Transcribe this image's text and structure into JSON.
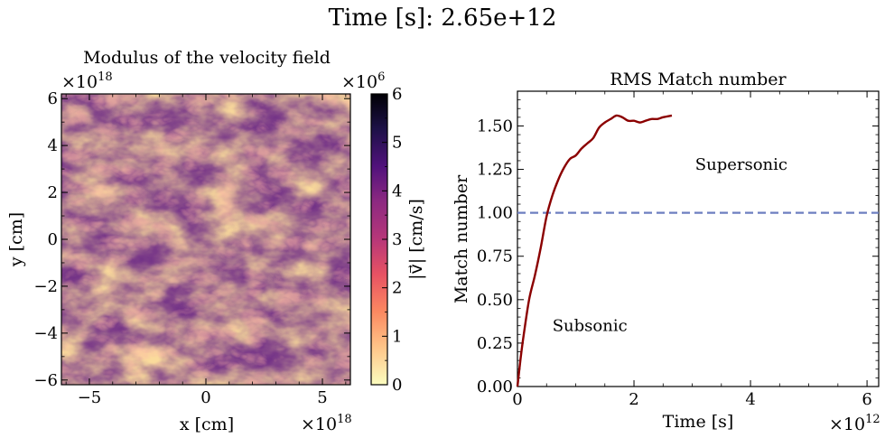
{
  "suptitle": "Time [s]: 2.65e+12",
  "colors": {
    "mach_line": "#8b0000",
    "threshold_line": "#6d7fc0"
  },
  "chart_data": [
    {
      "type": "heatmap",
      "title": "Modulus of the velocity field",
      "xlabel": "x [cm]",
      "ylabel": "y [cm]",
      "x_offset_label": "×10^18",
      "y_offset_label": "×10^18",
      "xlim": [
        -6.2,
        6.2
      ],
      "ylim": [
        -6.2,
        6.2
      ],
      "xticks": [
        -5,
        0,
        5
      ],
      "xtick_labels": [
        "−5",
        "0",
        "5"
      ],
      "yticks": [
        -6,
        -4,
        -2,
        0,
        2,
        4,
        6
      ],
      "ytick_labels": [
        "−6",
        "−4",
        "−2",
        "0",
        "2",
        "4",
        "6"
      ],
      "colormap": "magma_r",
      "colorbar": {
        "label": "|v⃗| [cm/s]",
        "offset_label": "×10^6",
        "range": [
          0,
          6
        ],
        "ticks": [
          0,
          1,
          2,
          3,
          4,
          5,
          6
        ],
        "tick_labels": [
          "0",
          "1",
          "2",
          "3",
          "4",
          "5",
          "6"
        ]
      }
    },
    {
      "type": "line",
      "title": "RMS Match number",
      "xlabel": "Time [s]",
      "ylabel": "Match number",
      "x_offset_label": "×10^12",
      "xlim": [
        0,
        6.2
      ],
      "ylim": [
        0,
        1.7
      ],
      "xticks": [
        0,
        2,
        4,
        6
      ],
      "xtick_labels": [
        "0",
        "2",
        "4",
        "6"
      ],
      "yticks": [
        0,
        0.25,
        0.5,
        0.75,
        1.0,
        1.25,
        1.5
      ],
      "ytick_labels": [
        "0.00",
        "0.25",
        "0.50",
        "0.75",
        "1.00",
        "1.25",
        "1.50"
      ],
      "series": [
        {
          "x": [
            0.0,
            0.05,
            0.1,
            0.2,
            0.3,
            0.4,
            0.5,
            0.6,
            0.7,
            0.8,
            0.9,
            1.0,
            1.1,
            1.2,
            1.3,
            1.4,
            1.5,
            1.6,
            1.7,
            1.8,
            1.9,
            2.0,
            2.1,
            2.2,
            2.3,
            2.4,
            2.5,
            2.65
          ],
          "y": [
            0.0,
            0.15,
            0.28,
            0.5,
            0.64,
            0.8,
            0.98,
            1.1,
            1.19,
            1.26,
            1.31,
            1.33,
            1.37,
            1.4,
            1.43,
            1.49,
            1.52,
            1.54,
            1.56,
            1.55,
            1.53,
            1.53,
            1.52,
            1.53,
            1.54,
            1.54,
            1.55,
            1.56
          ]
        }
      ],
      "hline": {
        "y": 1.0
      },
      "annotations": [
        {
          "text": "Supersonic",
          "x": 3.05,
          "y": 1.28
        },
        {
          "text": "Subsonic",
          "x": 0.6,
          "y": 0.35
        }
      ]
    }
  ]
}
